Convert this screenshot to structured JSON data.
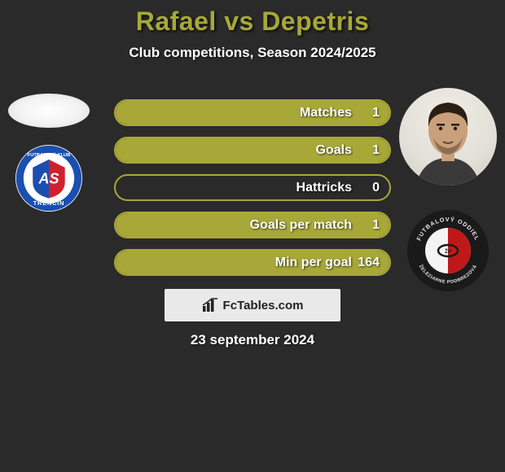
{
  "title": "Rafael vs Depetris",
  "title_color": "#a8a838",
  "subtitle": "Club competitions, Season 2024/2025",
  "subtitle_color": "#ffffff",
  "background_color": "#2a2a2a",
  "bar_border_color": "#a8a838",
  "bar_fill_color": "#a8a838",
  "bar_text_color": "#ffffff",
  "stats": [
    {
      "label": "Matches",
      "value": "1",
      "fill_pct": 100
    },
    {
      "label": "Goals",
      "value": "1",
      "fill_pct": 100
    },
    {
      "label": "Hattricks",
      "value": "0",
      "fill_pct": 0
    },
    {
      "label": "Goals per match",
      "value": "1",
      "fill_pct": 100
    },
    {
      "label": "Min per goal",
      "value": "164",
      "fill_pct": 100
    }
  ],
  "footer_brand": "FcTables.com",
  "footer_box_bg": "#e9e9e9",
  "date_text": "23 september 2024",
  "left_club_badge": {
    "outer_ring": "#1a4fb0",
    "inner_bg": "#ffffff",
    "text": "TRENČÍN",
    "text_top": "FUTBALOVÝ KLUB",
    "accent_red": "#d02030",
    "accent_blue": "#1a4fb0"
  },
  "right_club_badge": {
    "outer_bg": "#1a1a1a",
    "ring_text_color": "#e8e8e8",
    "top_text": "FUTBALOVÝ ODDIEL",
    "bottom_text": "ŽELEZIARNE PODBREZOVÁ",
    "half_red": "#c01818",
    "half_white": "#f4f4f4"
  },
  "player_face": {
    "skin": "#c9a07a",
    "hair": "#2b1e14",
    "shirt": "#3a3a3a"
  }
}
